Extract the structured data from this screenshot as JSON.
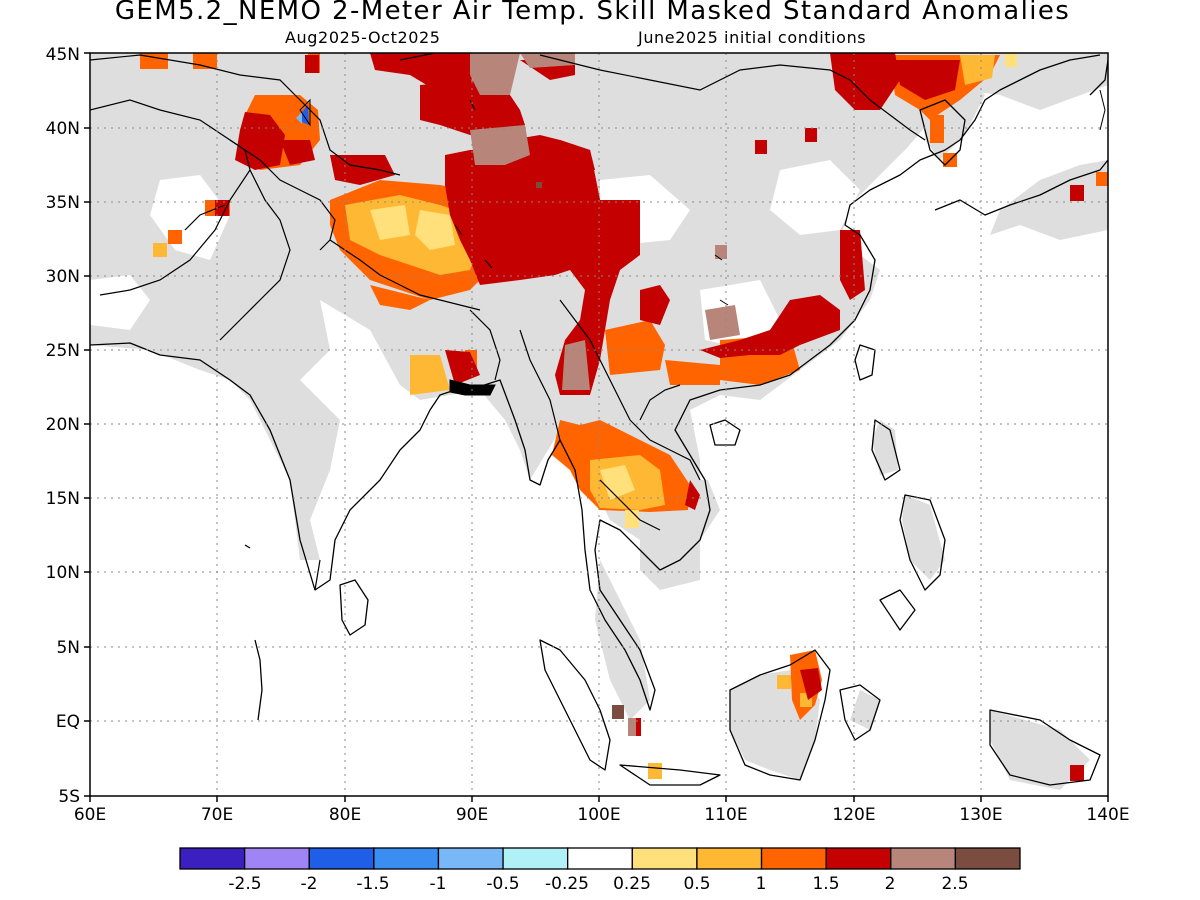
{
  "title": "GEM5.2_NEMO 2-Meter Air Temp. Skill Masked Standard Anomalies",
  "subtitle_left": "Aug2025-Oct2025",
  "subtitle_right": "June2025 initial conditions",
  "lat_labels": [
    "45N",
    "40N",
    "35N",
    "30N",
    "25N",
    "20N",
    "15N",
    "10N",
    "5N",
    "EQ",
    "5S"
  ],
  "lon_labels": [
    "60E",
    "70E",
    "80E",
    "90E",
    "100E",
    "110E",
    "120E",
    "130E",
    "140E"
  ],
  "colorbar": {
    "labels": [
      "-2.5",
      "-2",
      "-1.5",
      "-1",
      "-0.5",
      "-0.25",
      "0.25",
      "0.5",
      "1",
      "1.5",
      "2",
      "2.5"
    ],
    "colors": [
      "#3b1fbf",
      "#9e84f5",
      "#1f5ee6",
      "#3a8ef2",
      "#78b8f7",
      "#b0f0f7",
      "#ffffff",
      "#ffe07a",
      "#ffb833",
      "#ff6400",
      "#c40000",
      "#b8857a",
      "#7a4d40"
    ]
  },
  "colors": {
    "land_masked": "#dedede",
    "land_white": "#ffffff",
    "coast": "#000000",
    "grid": "#8a8a8a"
  }
}
